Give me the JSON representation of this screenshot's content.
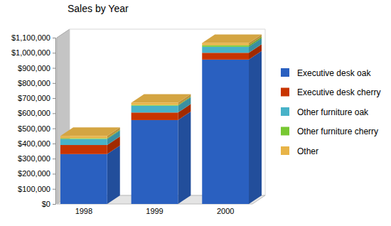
{
  "chart_data": {
    "type": "bar",
    "title": "Sales by Year",
    "categories": [
      "1998",
      "1999",
      "2000"
    ],
    "series": [
      {
        "name": "Executive desk oak",
        "color": "#2a60c0",
        "values": [
          330000,
          555000,
          955000
        ]
      },
      {
        "name": "Executive desk cherry",
        "color": "#c83400",
        "values": [
          60000,
          50000,
          45000
        ]
      },
      {
        "name": "Other furniture oak",
        "color": "#48b2c8",
        "values": [
          40000,
          45000,
          40000
        ]
      },
      {
        "name": "Other furniture cherry",
        "color": "#78c832",
        "values": [
          5000,
          5000,
          10000
        ]
      },
      {
        "name": "Other",
        "color": "#e8b448",
        "values": [
          15000,
          15000,
          15000
        ]
      }
    ],
    "ylim": [
      0,
      1100000
    ],
    "yticks": [
      {
        "value": 0,
        "label": "$0"
      },
      {
        "value": 100000,
        "label": "$100,000"
      },
      {
        "value": 200000,
        "label": "$200,000"
      },
      {
        "value": 300000,
        "label": "$300,000"
      },
      {
        "value": 400000,
        "label": "$400,000"
      },
      {
        "value": 500000,
        "label": "$500,000"
      },
      {
        "value": 600000,
        "label": "$600,000"
      },
      {
        "value": 700000,
        "label": "$700,000"
      },
      {
        "value": 800000,
        "label": "$800,000"
      },
      {
        "value": 900000,
        "label": "$900,000"
      },
      {
        "value": 1000000,
        "label": "$1,000,000"
      },
      {
        "value": 1100000,
        "label": "$1,100,000"
      }
    ],
    "stacked": true,
    "grid": false,
    "legend": "right"
  }
}
